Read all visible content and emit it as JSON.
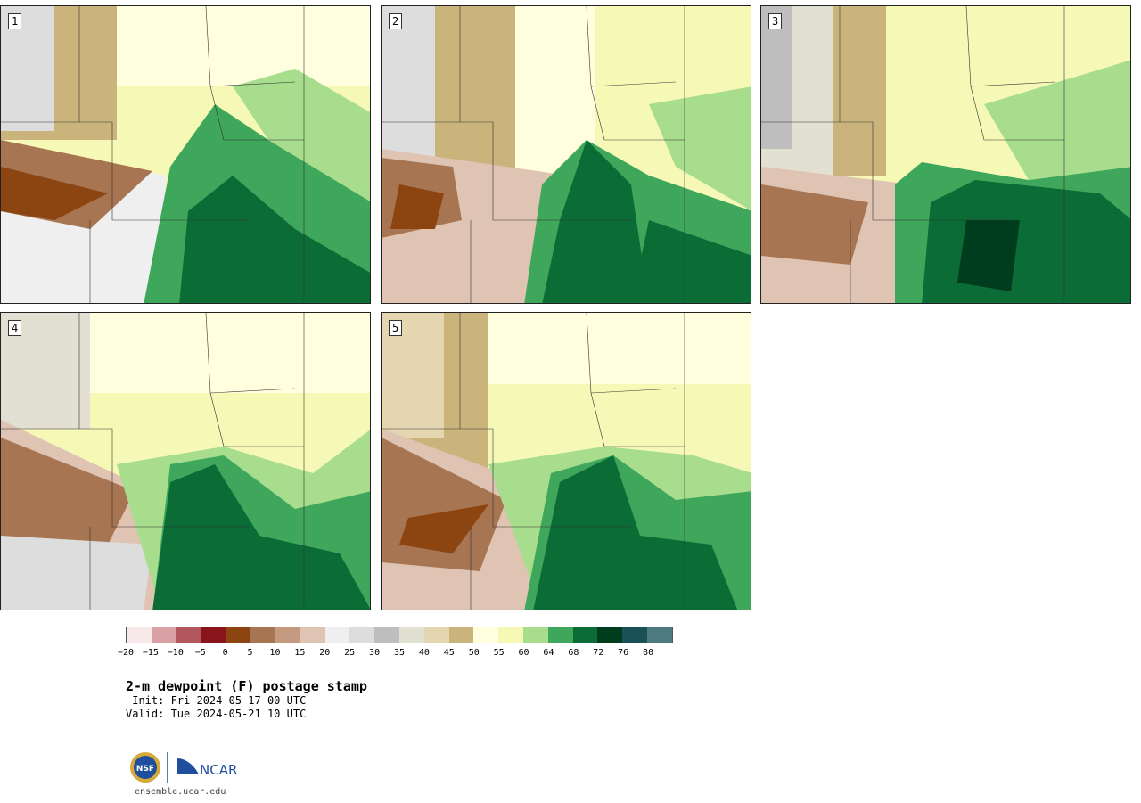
{
  "panels": [
    {
      "label": "1"
    },
    {
      "label": "2"
    },
    {
      "label": "3"
    },
    {
      "label": "4"
    },
    {
      "label": "5"
    }
  ],
  "colorbar": {
    "colors": [
      "#f7e8ea",
      "#d9a1a6",
      "#b2575e",
      "#8a141c",
      "#8c4511",
      "#a87552",
      "#c49a80",
      "#dfc3b3",
      "#efefef",
      "#dddddd",
      "#bebebe",
      "#e2e0d3",
      "#e5d6b2",
      "#cbb47c",
      "#ffffdf",
      "#f6f9b6",
      "#a7dd8d",
      "#3fa75b",
      "#0b6d35",
      "#003d1e",
      "#1a5157",
      "#4e7a80"
    ],
    "ticks": [
      "−20",
      "−15",
      "−10",
      "−5",
      "0",
      "5",
      "10",
      "15",
      "20",
      "25",
      "30",
      "35",
      "40",
      "45",
      "50",
      "55",
      "60",
      "64",
      "68",
      "72",
      "76",
      "80"
    ]
  },
  "title": "2-m dewpoint (F) postage stamp",
  "init": " Init: Fri 2024-05-17 00 UTC",
  "valid": "Valid: Tue 2024-05-21 10 UTC",
  "logo": {
    "nsf": "NSF",
    "ncar": "NCAR"
  },
  "site": "ensemble.ucar.edu"
}
